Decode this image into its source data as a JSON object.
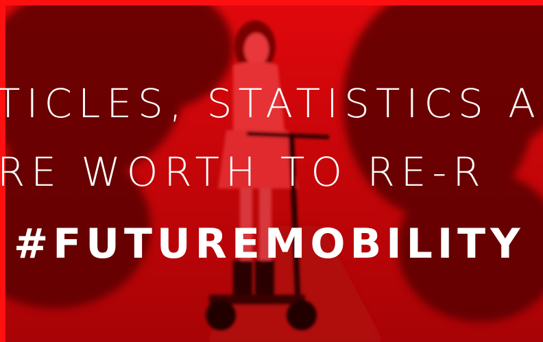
{
  "overlay": {
    "lines": [
      "TICLES, STATISTICS A",
      "RE WORTH TO RE-R"
    ],
    "hashtag": "#FUTUREMOBILITY"
  }
}
